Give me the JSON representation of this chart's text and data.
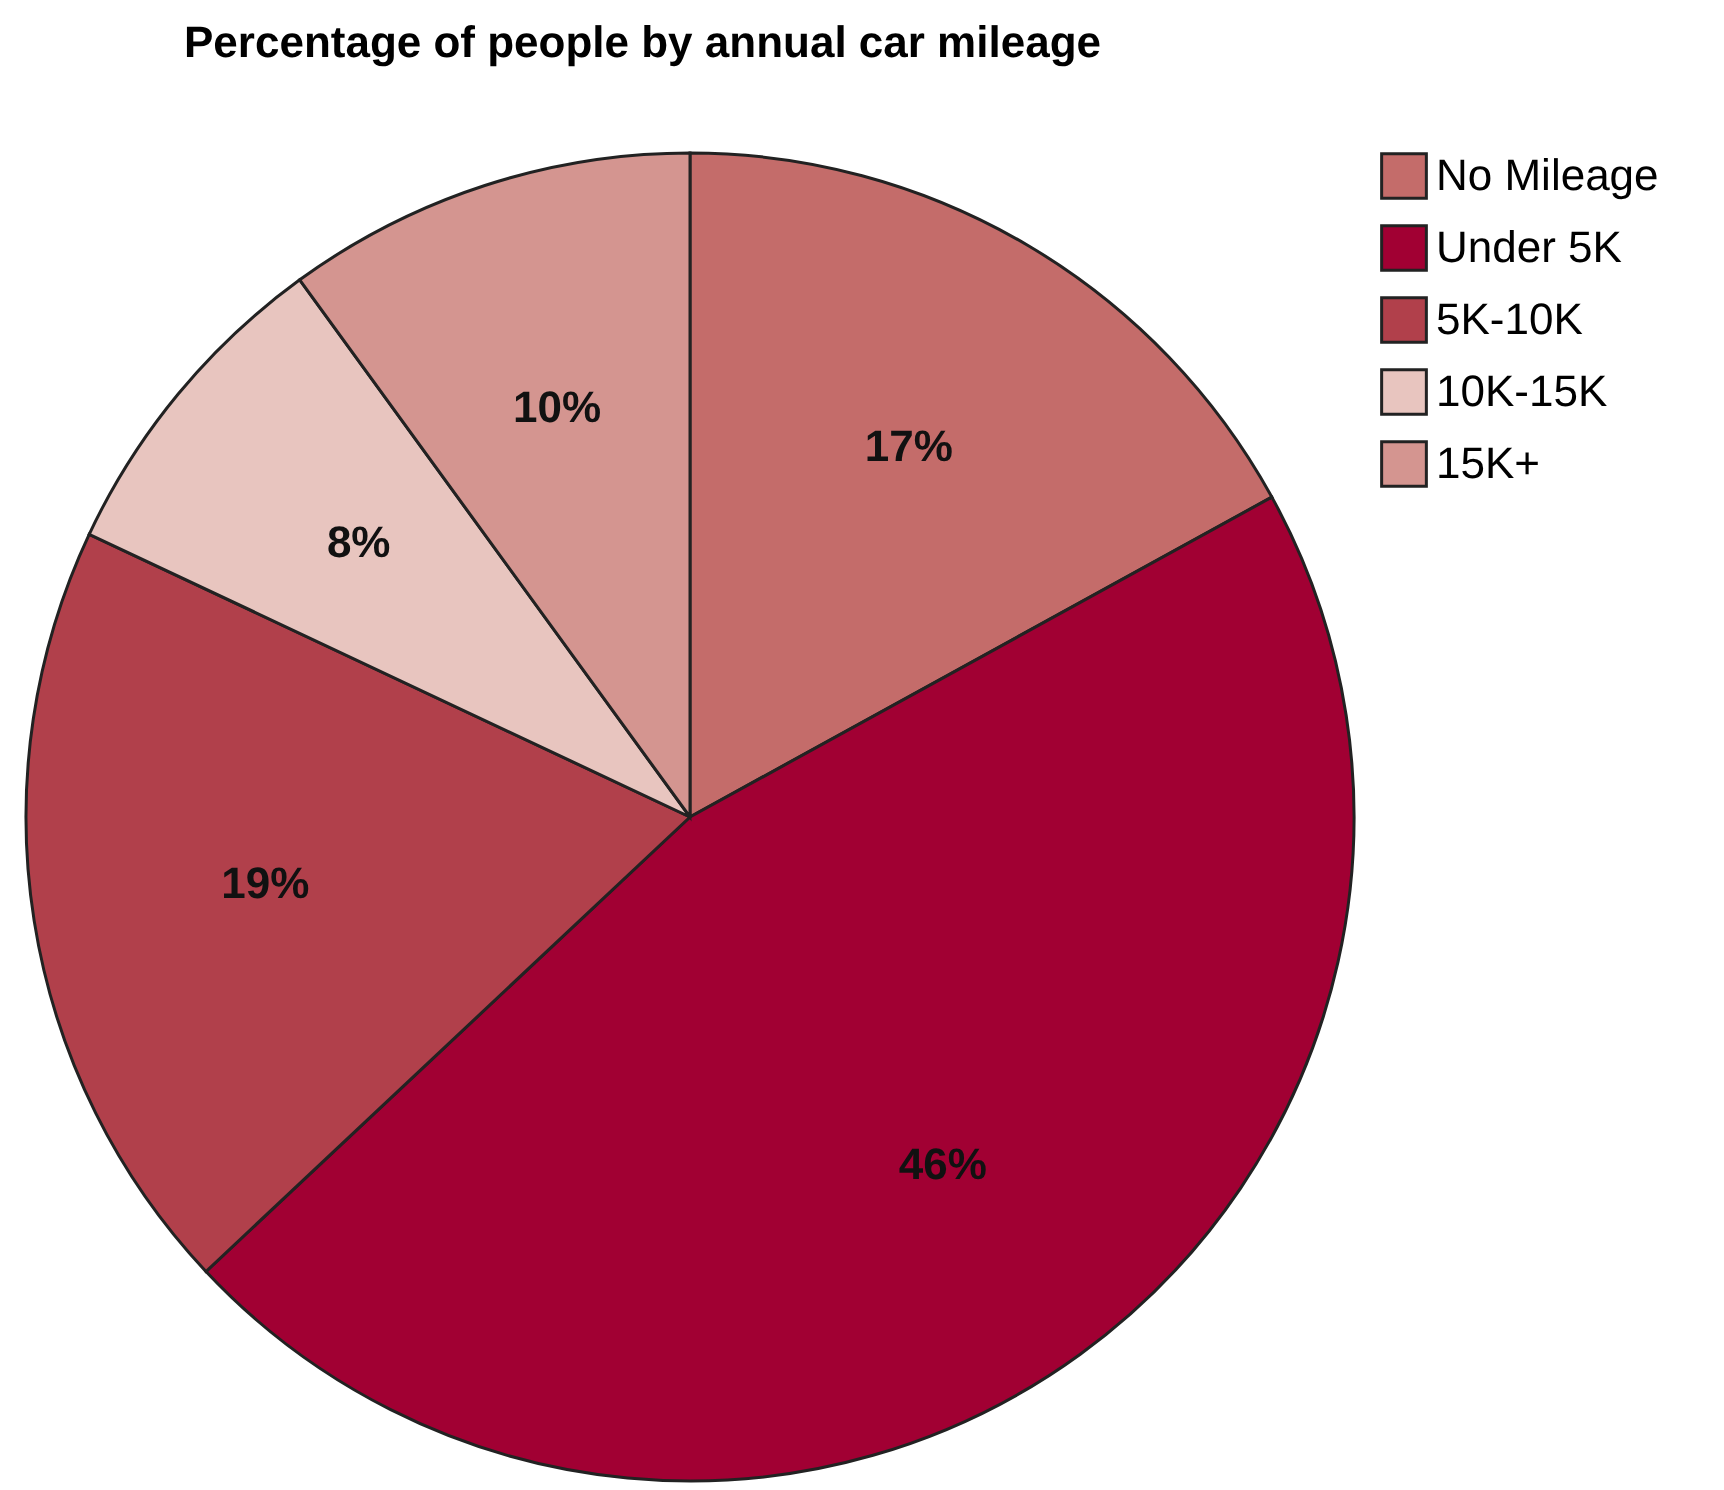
{
  "chart_data": {
    "type": "pie",
    "title": "Percentage of people by annual car mileage",
    "categories": [
      "No Mileage",
      "Under 5K",
      "5K-10K",
      "10K-15K",
      "15K+"
    ],
    "values": [
      17,
      46,
      19,
      8,
      10
    ],
    "colors": [
      "#c46c6a",
      "#a10033",
      "#b1404b",
      "#e8c5bf",
      "#d49590"
    ],
    "value_labels": [
      "17%",
      "46%",
      "19%",
      "8%",
      "10%"
    ],
    "legend": "right"
  }
}
